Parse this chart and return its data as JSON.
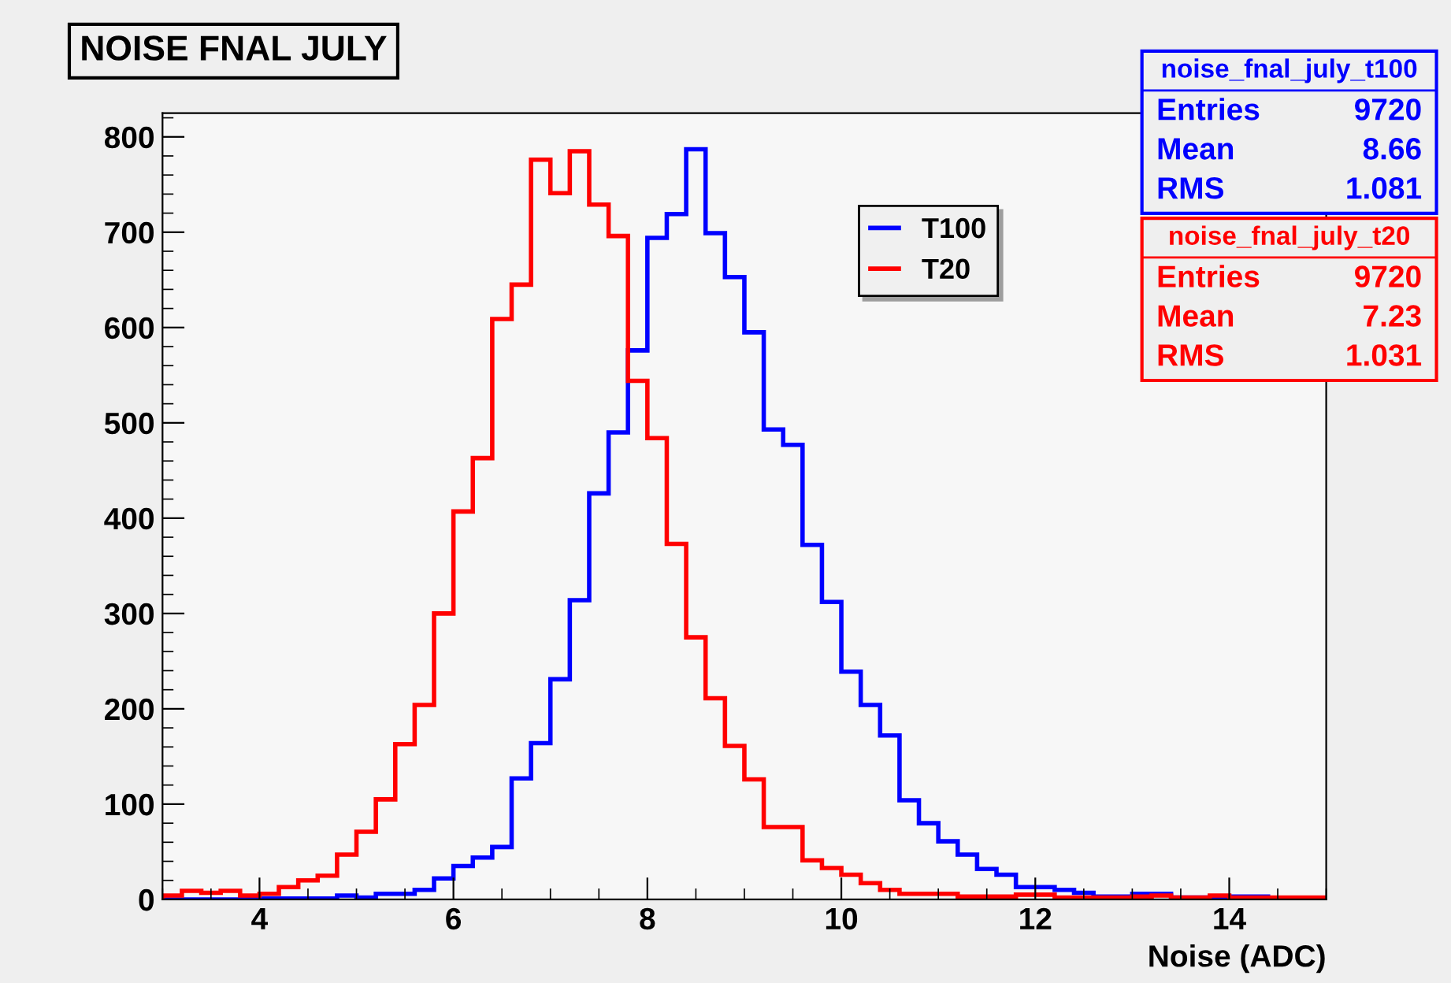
{
  "chart_data": {
    "type": "histogram",
    "title": "NOISE FNAL JULY",
    "xlabel": "Noise (ADC)",
    "bins": [
      3.0,
      3.2,
      3.4,
      3.6,
      3.8,
      4.0,
      4.2,
      4.4,
      4.6,
      4.8,
      5.0,
      5.2,
      5.4,
      5.6,
      5.8,
      6.0,
      6.2,
      6.4,
      6.6,
      6.8,
      7.0,
      7.2,
      7.4,
      7.6,
      7.8,
      8.0,
      8.2,
      8.4,
      8.6,
      8.8,
      9.0,
      9.2,
      9.4,
      9.6,
      9.8,
      10.0,
      10.2,
      10.4,
      10.6,
      10.8,
      11.0,
      11.2,
      11.4,
      11.6,
      11.8,
      12.0,
      12.2,
      12.4,
      12.6,
      12.8,
      13.0,
      13.2,
      13.4,
      13.6,
      13.8,
      14.0,
      14.2,
      14.4,
      14.6,
      14.8,
      15.0
    ],
    "series": [
      {
        "name": "T100",
        "color": "#0000ff",
        "values": [
          0,
          0,
          0,
          0,
          1,
          1,
          1,
          1,
          1,
          4,
          2,
          6,
          6,
          10,
          22,
          35,
          44,
          55,
          127,
          164,
          231,
          314,
          426,
          490,
          576,
          694,
          719,
          787,
          699,
          653,
          595,
          493,
          477,
          372,
          312,
          239,
          204,
          172,
          104,
          80,
          61,
          47,
          32,
          26,
          13,
          13,
          10,
          7,
          3,
          3,
          6,
          6,
          2,
          2,
          3,
          3,
          3,
          0,
          0,
          0
        ]
      },
      {
        "name": "T20",
        "color": "#ff0000",
        "values": [
          4,
          9,
          7,
          9,
          4,
          6,
          13,
          20,
          25,
          47,
          71,
          105,
          163,
          204,
          300,
          407,
          463,
          609,
          645,
          776,
          741,
          785,
          729,
          696,
          544,
          484,
          373,
          275,
          211,
          161,
          126,
          76,
          76,
          41,
          33,
          26,
          17,
          10,
          6,
          6,
          6,
          3,
          3,
          3,
          5,
          5,
          2,
          2,
          2,
          2,
          3,
          4,
          2,
          2,
          4,
          2,
          2,
          2,
          2,
          2
        ]
      }
    ],
    "xlim": [
      3,
      15
    ],
    "ylim": [
      0,
      825
    ],
    "xticks": [
      4,
      6,
      8,
      10,
      12,
      14
    ],
    "yticks": [
      0,
      100,
      200,
      300,
      400,
      500,
      600,
      700,
      800
    ],
    "legend": "top right",
    "grid": false,
    "annotations": [
      "noise_fnal_july_t100",
      "Entries 9720",
      "Mean 8.66",
      "RMS 1.081",
      "noise_fnal_july_t20",
      "Entries 9720",
      "Mean 7.23",
      "RMS 1.031"
    ]
  }
}
